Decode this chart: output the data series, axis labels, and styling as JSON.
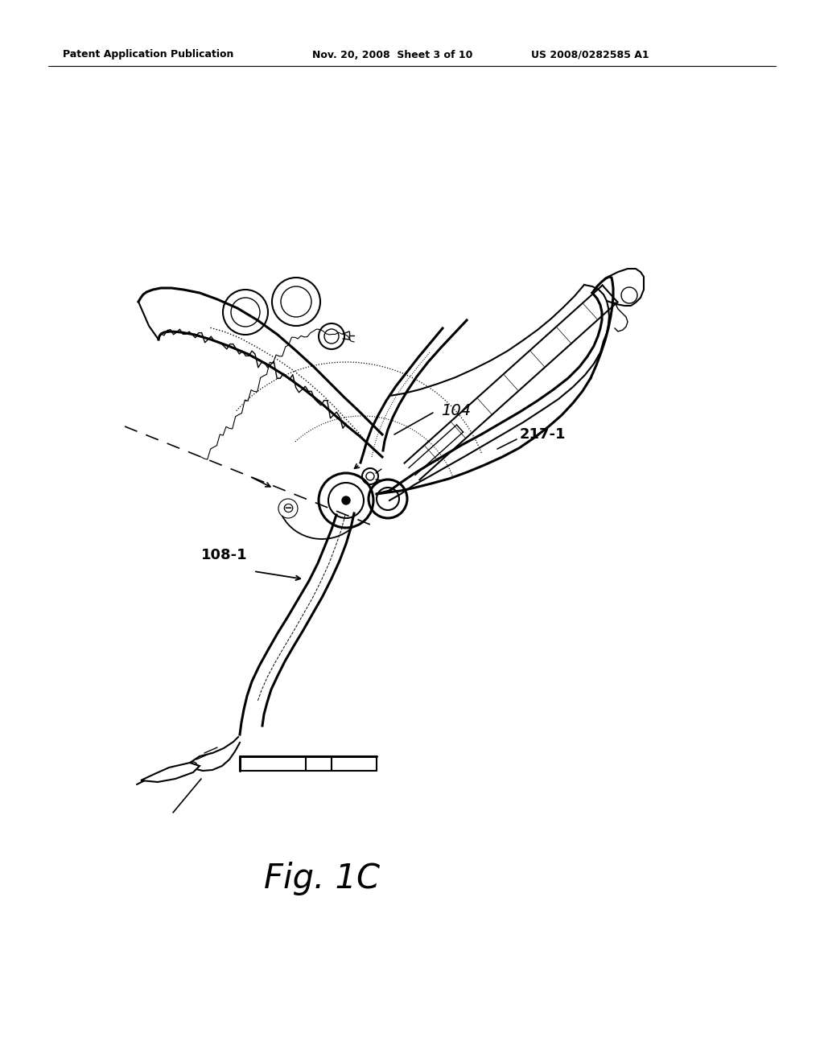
{
  "background_color": "#ffffff",
  "header_left": "Patent Application Publication",
  "header_center": "Nov. 20, 2008  Sheet 3 of 10",
  "header_right": "US 2008/0282585 A1",
  "figure_label": "Fig. 1C",
  "label_104": "104",
  "label_108_1": "108-1",
  "label_217_1": "217-1",
  "line_color": "#000000",
  "lw_heavy": 2.2,
  "lw_med": 1.5,
  "lw_thin": 1.0
}
